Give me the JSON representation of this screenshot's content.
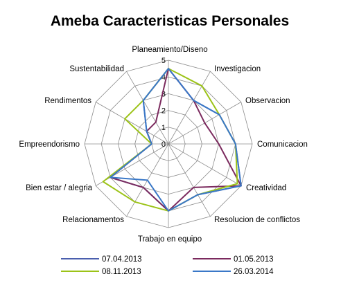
{
  "chart_data": {
    "type": "radar",
    "title": "Ameba Caracteristicas Personales",
    "categories": [
      "Planeamiento/Diseno",
      "Investigacion",
      "Observacion",
      "Comunicacion",
      "Creatividad",
      "Resolucion de conflictos",
      "Trabajo en equipo",
      "Relacionamentos",
      "Bien estar / alegria",
      "Empreendorismo",
      "Rendimentos",
      "Sustentabilidad"
    ],
    "rlim": [
      0,
      5
    ],
    "ticks": [
      0,
      1,
      2,
      3,
      4,
      5
    ],
    "grid": true,
    "legend_position": "bottom",
    "series": [
      {
        "name": "07.04.2013",
        "color": "#4a5fae",
        "values": [
          4.5,
          3,
          3.5,
          4,
          5,
          3.5,
          4,
          3,
          4,
          1,
          1.5,
          3
        ]
      },
      {
        "name": "01.05.2013",
        "color": "#7b2a5e",
        "values": [
          4.5,
          3,
          2.5,
          3,
          5,
          3,
          4,
          3,
          4,
          1,
          1.5,
          1.5
        ]
      },
      {
        "name": "08.11.2013",
        "color": "#9cc318",
        "values": [
          4.5,
          4,
          3.5,
          4,
          4.75,
          3.5,
          4,
          4,
          4.5,
          1,
          3,
          3
        ]
      },
      {
        "name": "26.03.2014",
        "color": "#3a78c7",
        "values": [
          4.5,
          3,
          3.5,
          4,
          5,
          3.5,
          4,
          2.5,
          4,
          1,
          1.5,
          3
        ]
      }
    ]
  }
}
